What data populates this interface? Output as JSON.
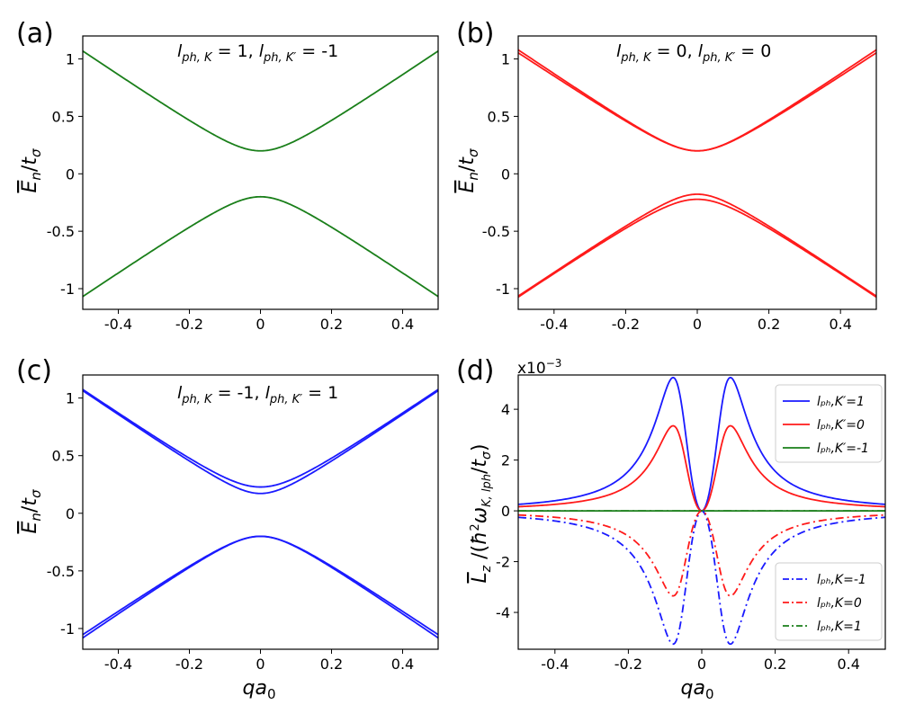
{
  "figure": {
    "colors": {
      "green": "#1a7f1a",
      "red": "#ff1a1a",
      "blue": "#1a1aff"
    },
    "x_label": "qa₀",
    "y_label_bands": "Eₙ/tσ",
    "y_label_lz": "L_z / (ħ²ω K,l_ph / tσ)"
  },
  "chart_data": [
    {
      "id": "a",
      "panel_label": "(a)",
      "type": "line",
      "title": "l_ph,K = 1, l_ph,K' = -1",
      "annotation": "lₚₕ,K = 1, lₚₕ,K′ = -1",
      "xlabel": "",
      "ylabel": "Eₙ/tσ",
      "xlim": [
        -0.5,
        0.5
      ],
      "ylim": [
        -1.18,
        1.2
      ],
      "x_ticks": [
        "-0.4",
        "-0.2",
        "0",
        "0.2",
        "0.4"
      ],
      "x_tick_values": [
        -0.4,
        -0.2,
        0,
        0.2,
        0.4
      ],
      "y_ticks": [
        "1",
        "0.5",
        "0",
        "-0.5",
        "-1"
      ],
      "y_tick_values": [
        1,
        0.5,
        0,
        -0.5,
        -1
      ],
      "model": "hyperbola",
      "series": [
        {
          "name": "upper band",
          "color": "green",
          "gap": 0.2,
          "sign": 1
        },
        {
          "name": "lower band",
          "color": "green",
          "gap": 0.2,
          "sign": -1
        }
      ]
    },
    {
      "id": "b",
      "panel_label": "(b)",
      "type": "line",
      "title": "l_ph,K = 0, l_ph,K' = 0",
      "annotation": "lₚₕ,K = 0, lₚₕ,K′ = 0",
      "xlabel": "",
      "ylabel": "Eₙ/tσ",
      "xlim": [
        -0.5,
        0.5
      ],
      "ylim": [
        -1.18,
        1.2
      ],
      "x_ticks": [
        "-0.4",
        "-0.2",
        "0",
        "0.2",
        "0.4"
      ],
      "x_tick_values": [
        -0.4,
        -0.2,
        0,
        0.2,
        0.4
      ],
      "y_ticks": [
        "1",
        "0.5",
        "0",
        "-0.5",
        "-1"
      ],
      "y_tick_values": [
        1,
        0.5,
        0,
        -0.5,
        -1
      ],
      "model": "hyperbola",
      "series": [
        {
          "name": "upper band 1",
          "color": "red",
          "gap": 0.2,
          "sign": 1,
          "scale": 1.01
        },
        {
          "name": "upper band 2",
          "color": "red",
          "gap": 0.2,
          "sign": 1,
          "scale": 0.985
        },
        {
          "name": "lower band 1",
          "color": "red",
          "gap": 0.178,
          "sign": -1,
          "scale": 1.0
        },
        {
          "name": "lower band 2",
          "color": "red",
          "gap": 0.222,
          "sign": -1,
          "scale": 1.0
        }
      ]
    },
    {
      "id": "c",
      "panel_label": "(c)",
      "type": "line",
      "title": "l_ph,K = -1, l_ph,K' = 1",
      "annotation": "lₚₕ,K = -1, lₚₕ,K′ = 1",
      "xlabel": "qa₀",
      "ylabel": "Eₙ/tσ",
      "xlim": [
        -0.5,
        0.5
      ],
      "ylim": [
        -1.18,
        1.2
      ],
      "x_ticks": [
        "-0.4",
        "-0.2",
        "0",
        "0.2",
        "0.4"
      ],
      "x_tick_values": [
        -0.4,
        -0.2,
        0,
        0.2,
        0.4
      ],
      "y_ticks": [
        "1",
        "0.5",
        "0",
        "-0.5",
        "-1"
      ],
      "y_tick_values": [
        1,
        0.5,
        0,
        -0.5,
        -1
      ],
      "model": "hyperbola",
      "series": [
        {
          "name": "upper band 1",
          "color": "blue",
          "gap": 0.228,
          "sign": 1,
          "scale": 1.0
        },
        {
          "name": "upper band 2",
          "color": "blue",
          "gap": 0.172,
          "sign": 1,
          "scale": 1.0
        },
        {
          "name": "lower band 1",
          "color": "blue",
          "gap": 0.2,
          "sign": -1,
          "scale": 1.012
        },
        {
          "name": "lower band 2",
          "color": "blue",
          "gap": 0.2,
          "sign": -1,
          "scale": 0.985
        }
      ]
    },
    {
      "id": "d",
      "panel_label": "(d)",
      "type": "line",
      "title": "",
      "exponent_label": "x10⁻³",
      "xlabel": "qa₀",
      "ylabel": "L_z / (ħ²ω K,l_ph / tσ)",
      "xlim": [
        -0.5,
        0.5
      ],
      "ylim": [
        -5.45,
        5.35
      ],
      "x_ticks": [
        "-0.4",
        "-0.2",
        "0",
        "0.2",
        "0.4"
      ],
      "x_tick_values": [
        -0.4,
        -0.2,
        0,
        0.2,
        0.4
      ],
      "y_ticks": [
        "4",
        "2",
        "0",
        "-2",
        "-4"
      ],
      "y_tick_values": [
        4,
        2,
        0,
        -2,
        -4
      ],
      "model": "peaks",
      "series": [
        {
          "name": "l_ph,K'=1",
          "color": "blue",
          "style": "solid",
          "amplitude": 5.25
        },
        {
          "name": "l_ph,K'=0",
          "color": "red",
          "style": "solid",
          "amplitude": 3.35
        },
        {
          "name": "l_ph,K'=-1",
          "color": "green",
          "style": "solid",
          "amplitude": 0
        },
        {
          "name": "l_ph,K=-1",
          "color": "blue",
          "style": "dashdot",
          "amplitude": -5.25
        },
        {
          "name": "l_ph,K=0",
          "color": "red",
          "style": "dashdot",
          "amplitude": -3.35
        },
        {
          "name": "l_ph,K=1",
          "color": "green",
          "style": "dashdot",
          "amplitude": 0
        }
      ],
      "legend_top": {
        "position": "top-right",
        "entries": [
          {
            "label": "lₚₕ,K′=1",
            "color": "blue",
            "style": "solid"
          },
          {
            "label": "lₚₕ,K′=0",
            "color": "red",
            "style": "solid"
          },
          {
            "label": "lₚₕ,K′=-1",
            "color": "green",
            "style": "solid"
          }
        ]
      },
      "legend_bottom": {
        "position": "bottom-right",
        "entries": [
          {
            "label": "lₚₕ,K=-1",
            "color": "blue",
            "style": "dashdot"
          },
          {
            "label": "lₚₕ,K=0",
            "color": "red",
            "style": "dashdot"
          },
          {
            "label": "lₚₕ,K=1",
            "color": "green",
            "style": "dashdot"
          }
        ]
      }
    }
  ]
}
